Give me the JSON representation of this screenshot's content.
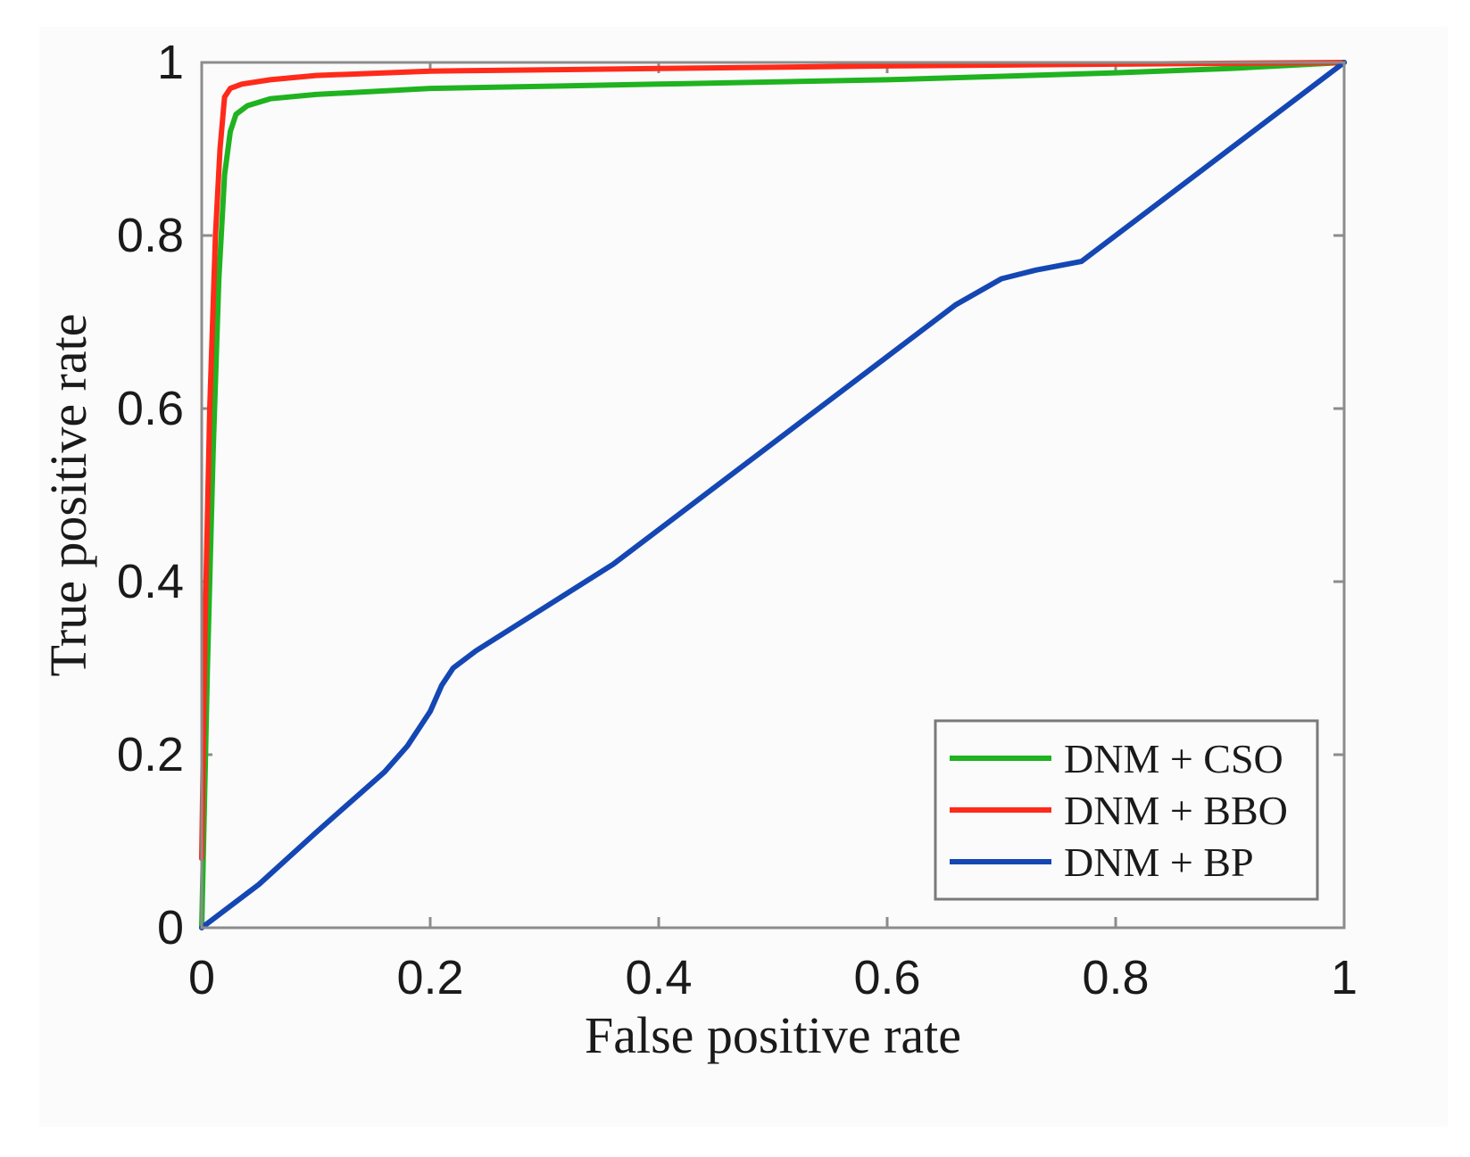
{
  "chart_data": {
    "type": "line",
    "title": "",
    "xlabel": "False positive rate",
    "ylabel": "True positive rate",
    "xlim": [
      0,
      1
    ],
    "ylim": [
      0,
      1
    ],
    "xticks": [
      0,
      0.2,
      0.4,
      0.6,
      0.8,
      1
    ],
    "yticks": [
      0,
      0.2,
      0.4,
      0.6,
      0.8,
      1
    ],
    "xtick_labels": [
      "0",
      "0.2",
      "0.4",
      "0.6",
      "0.8",
      "1"
    ],
    "ytick_labels": [
      "0",
      "0.2",
      "0.4",
      "0.6",
      "0.8",
      "1"
    ],
    "grid": false,
    "legend_position": "bottom-right",
    "series": [
      {
        "name": "DNM + CSO",
        "color": "#1fb31f",
        "x": [
          0,
          0.005,
          0.01,
          0.015,
          0.02,
          0.025,
          0.03,
          0.04,
          0.06,
          0.1,
          0.2,
          0.4,
          0.6,
          0.8,
          0.9,
          1.0
        ],
        "y": [
          0,
          0.3,
          0.55,
          0.75,
          0.87,
          0.92,
          0.94,
          0.95,
          0.958,
          0.963,
          0.97,
          0.975,
          0.98,
          0.988,
          0.993,
          1.0
        ]
      },
      {
        "name": "DNM + BBO",
        "color": "#ff2a1a",
        "x": [
          0,
          0.003,
          0.007,
          0.012,
          0.016,
          0.02,
          0.025,
          0.035,
          0.06,
          0.1,
          0.2,
          0.4,
          0.6,
          0.8,
          1.0
        ],
        "y": [
          0.08,
          0.35,
          0.6,
          0.8,
          0.9,
          0.96,
          0.97,
          0.975,
          0.98,
          0.985,
          0.99,
          0.993,
          0.996,
          0.998,
          1.0
        ]
      },
      {
        "name": "DNM + BP",
        "color": "#1447b4",
        "x": [
          0,
          0.05,
          0.1,
          0.16,
          0.18,
          0.2,
          0.21,
          0.22,
          0.24,
          0.3,
          0.36,
          0.44,
          0.52,
          0.6,
          0.66,
          0.7,
          0.73,
          0.77,
          0.8,
          0.9,
          1.0
        ],
        "y": [
          0,
          0.05,
          0.11,
          0.18,
          0.21,
          0.25,
          0.28,
          0.3,
          0.32,
          0.37,
          0.42,
          0.5,
          0.58,
          0.66,
          0.72,
          0.75,
          0.76,
          0.77,
          0.8,
          0.9,
          1.0
        ]
      }
    ]
  }
}
